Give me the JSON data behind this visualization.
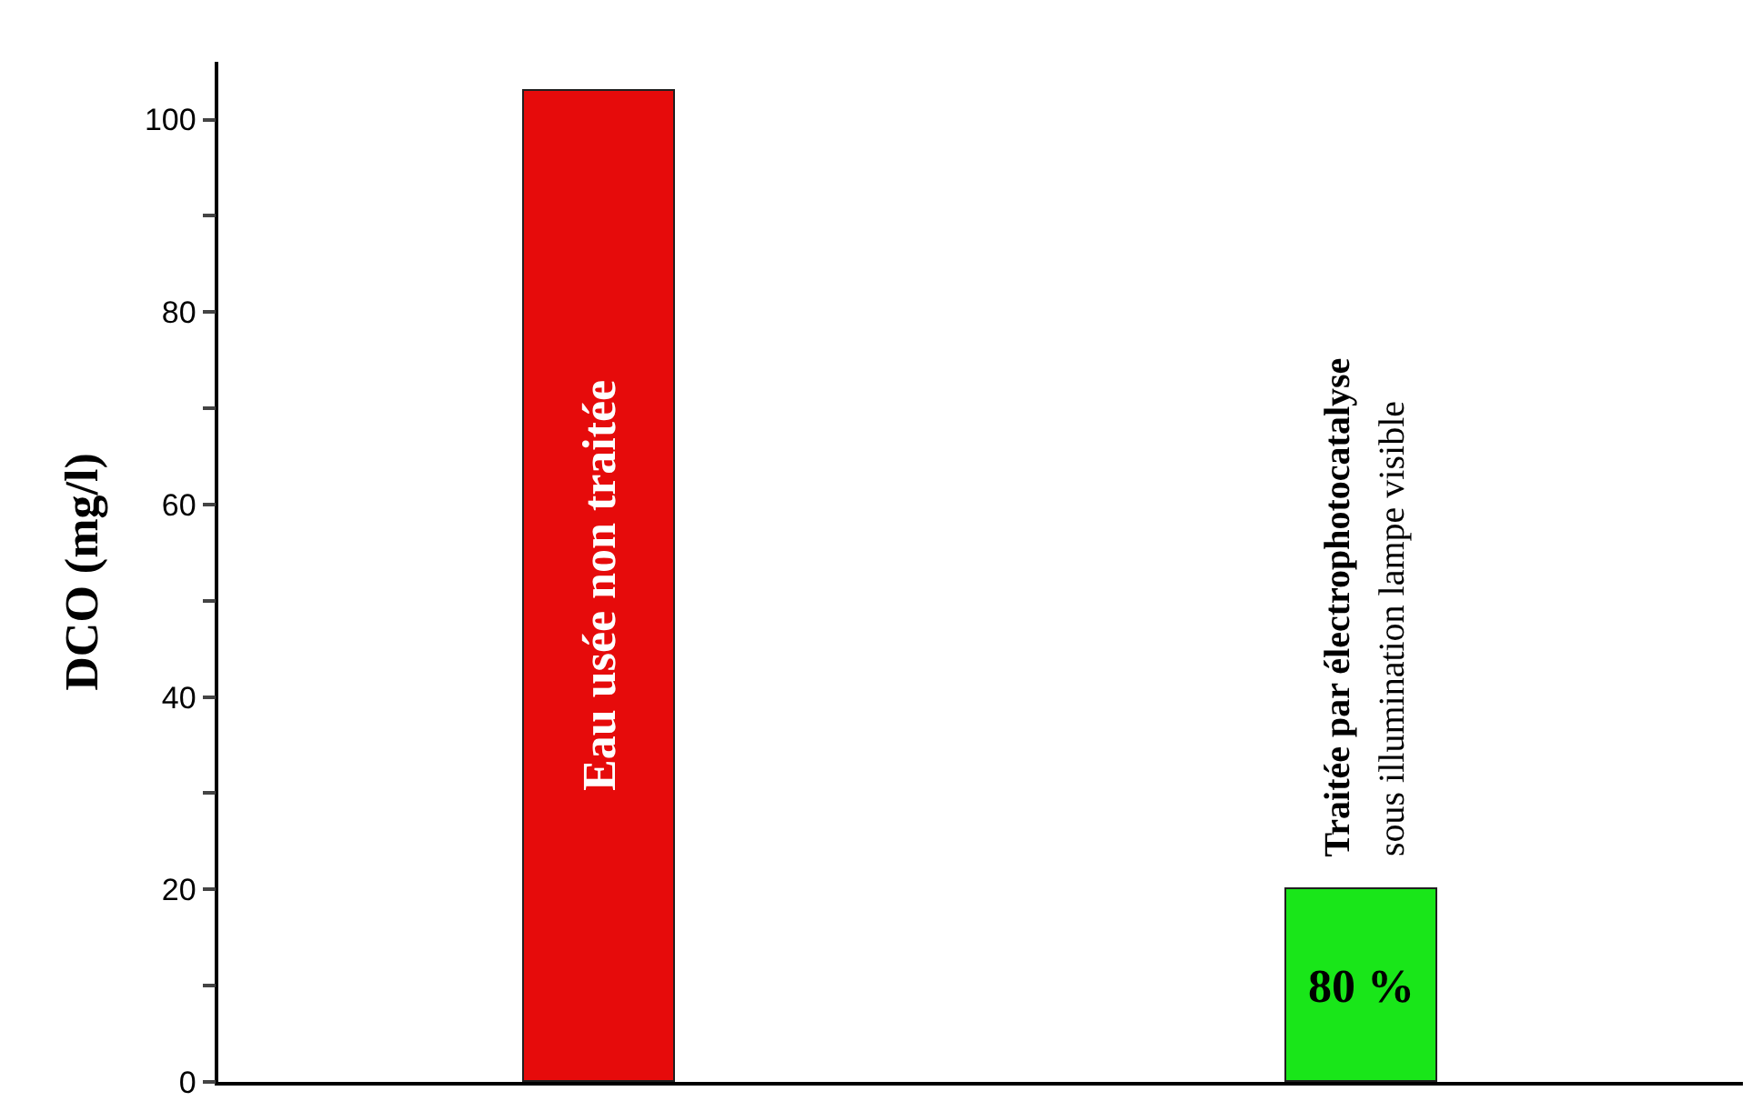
{
  "chart_data": {
    "type": "bar",
    "ylabel": "DCO (mg/l)",
    "categories": [
      null,
      null
    ],
    "values": [
      103,
      20
    ],
    "colors": [
      "#e60b0b",
      "#19e619"
    ],
    "ylim": [
      0,
      106
    ],
    "yticks": [
      0,
      {
        "value": 10,
        "label": null
      },
      20,
      {
        "value": 30,
        "label": null
      },
      40,
      {
        "value": 50,
        "label": null
      },
      60,
      {
        "value": 70,
        "label": null
      },
      80,
      {
        "value": 90,
        "label": null
      },
      100
    ],
    "legend": false,
    "annotations": [
      "Eau usée non traitée",
      "Traitée par électrophotocatalyse",
      "sous illumination lampe visible",
      "80 %"
    ]
  }
}
